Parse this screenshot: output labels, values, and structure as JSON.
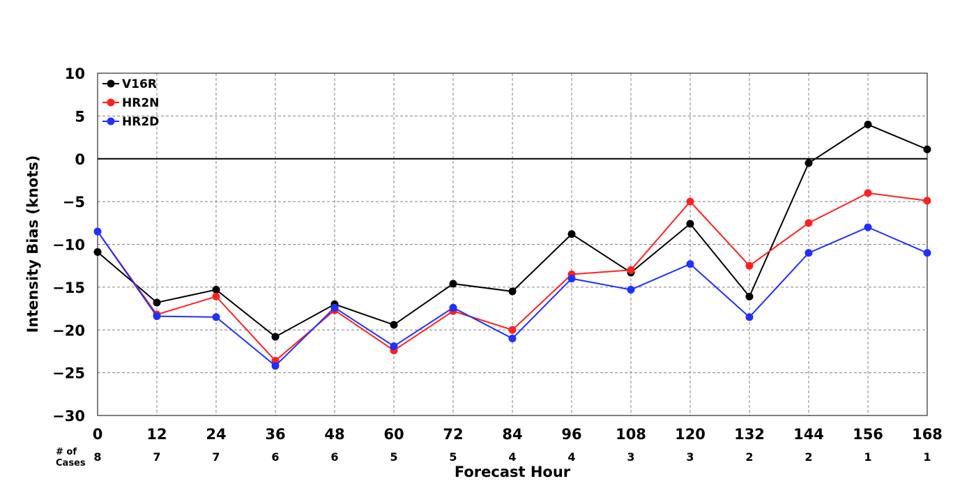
{
  "chart_data": {
    "type": "line",
    "xlabel": "Forecast Hour",
    "ylabel": "Intensity Bias (knots)",
    "x": [
      0,
      12,
      24,
      36,
      48,
      60,
      72,
      84,
      96,
      108,
      120,
      132,
      144,
      156,
      168
    ],
    "xlim": [
      0,
      168
    ],
    "ylim": [
      -30,
      10
    ],
    "yticks": [
      10,
      5,
      0,
      -5,
      -10,
      -15,
      -20,
      -25,
      -30
    ],
    "ytick_labels": [
      "10",
      "5",
      "0",
      "−5",
      "−10",
      "−15",
      "−20",
      "−25",
      "−30"
    ],
    "xtick_labels": [
      "0",
      "12",
      "24",
      "36",
      "48",
      "60",
      "72",
      "84",
      "96",
      "108",
      "120",
      "132",
      "144",
      "156",
      "168"
    ],
    "grid": true,
    "zero_line": true,
    "legend_position": "top-left",
    "cases_title_line1": "# of",
    "cases_title_line2": "Cases",
    "cases": [
      "8",
      "7",
      "7",
      "6",
      "6",
      "5",
      "5",
      "4",
      "4",
      "3",
      "3",
      "2",
      "2",
      "1",
      "1"
    ],
    "series": [
      {
        "name": "V16R",
        "color": "#000000",
        "values": [
          -10.9,
          -16.8,
          -15.3,
          -20.8,
          -17.0,
          -19.4,
          -14.6,
          -15.5,
          -8.8,
          -13.3,
          -7.6,
          -16.1,
          -0.5,
          4.0,
          1.1
        ]
      },
      {
        "name": "HR2N",
        "color": "#ff2020",
        "values": [
          -8.5,
          -18.2,
          -16.1,
          -23.6,
          -17.7,
          -22.4,
          -17.8,
          -20.0,
          -13.5,
          -13.0,
          -5.0,
          -12.5,
          -7.5,
          -4.0,
          -4.9
        ]
      },
      {
        "name": "HR2D",
        "color": "#2030ff",
        "values": [
          -8.5,
          -18.4,
          -18.5,
          -24.2,
          -17.4,
          -21.9,
          -17.4,
          -21.0,
          -14.0,
          -15.3,
          -12.3,
          -18.5,
          -11.0,
          -8.0,
          -11.0
        ]
      }
    ]
  }
}
